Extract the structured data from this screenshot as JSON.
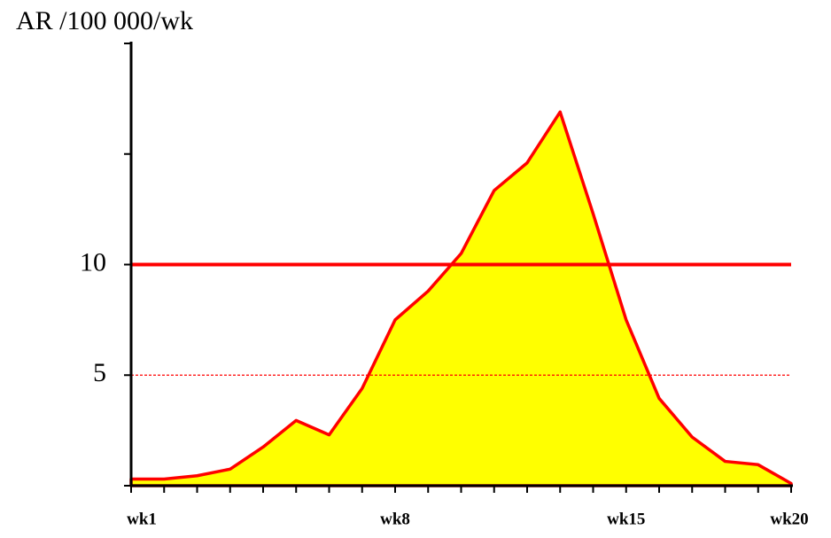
{
  "chart_data": {
    "type": "area",
    "y_axis_label": "AR /100 000/wk",
    "categories": [
      "wk1",
      null,
      null,
      null,
      null,
      null,
      null,
      null,
      "wk8",
      null,
      null,
      null,
      null,
      null,
      null,
      "wk15",
      null,
      null,
      null,
      null,
      "wk20"
    ],
    "values": [
      0.3,
      0.3,
      0.45,
      0.75,
      1.75,
      2.95,
      2.3,
      4.4,
      7.5,
      8.8,
      10.5,
      13.35,
      14.6,
      16.9,
      12.3,
      7.5,
      3.95,
      2.2,
      1.1,
      0.95,
      0.1
    ],
    "color": "#ffff00",
    "line_color": "#ff0000",
    "ylim": [
      0,
      20
    ],
    "yticks": [
      5,
      10
    ],
    "yminor_ticks": [
      0,
      15,
      20
    ],
    "reference_lines": [
      {
        "value": 10,
        "style": "solid",
        "color": "#ff0000"
      },
      {
        "value": 5,
        "style": "dashed",
        "color": "#ff0000"
      }
    ]
  }
}
